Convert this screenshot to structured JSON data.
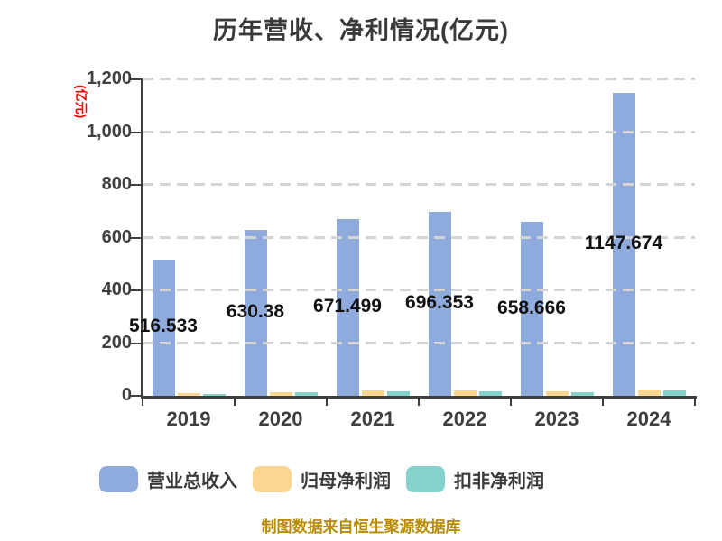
{
  "chart_data": {
    "type": "bar",
    "title": "历年营收、净利情况(亿元)",
    "y_unit_label": "(亿元)",
    "categories": [
      "2019",
      "2020",
      "2021",
      "2022",
      "2023",
      "2024"
    ],
    "series": [
      {
        "id": "total-revenue",
        "name": "营业总收入",
        "color": "#8FAADC",
        "values": [
          516.533,
          630.38,
          671.499,
          696.353,
          658.666,
          1147.674
        ],
        "value_labels": [
          "516.533",
          "630.38",
          "671.499",
          "696.353",
          "658.666",
          "1147.674"
        ]
      },
      {
        "id": "net-profit-attributable",
        "name": "归母净利润",
        "color": "#FAD690",
        "values": [
          9.3,
          14.7,
          20.0,
          20.8,
          17.8,
          23.6
        ]
      },
      {
        "id": "non-gaap-net-profit",
        "name": "扣非净利润",
        "color": "#84D2CC",
        "values": [
          7.0,
          12.0,
          17.4,
          17.7,
          15.3,
          21.4
        ]
      }
    ],
    "ylim": [
      0,
      1200
    ],
    "ytick_values": [
      0,
      200,
      400,
      600,
      800,
      1000,
      1200
    ],
    "ytick_labels": [
      "0",
      "200",
      "400",
      "600",
      "800",
      "1,000",
      "1,200"
    ],
    "grid": "horizontal-dashed",
    "legend_position": "bottom"
  },
  "footer": {
    "text": "制图数据来自恒生聚源数据库"
  },
  "colors": {
    "background": "#FFFFFF",
    "axis": "#3F3F3F",
    "gridline": "#D4D4D4",
    "title_text": "#3A3A3A",
    "y_unit_label": "#FF0000",
    "value_label": "#111111",
    "footer_text": "#BA8B00"
  }
}
